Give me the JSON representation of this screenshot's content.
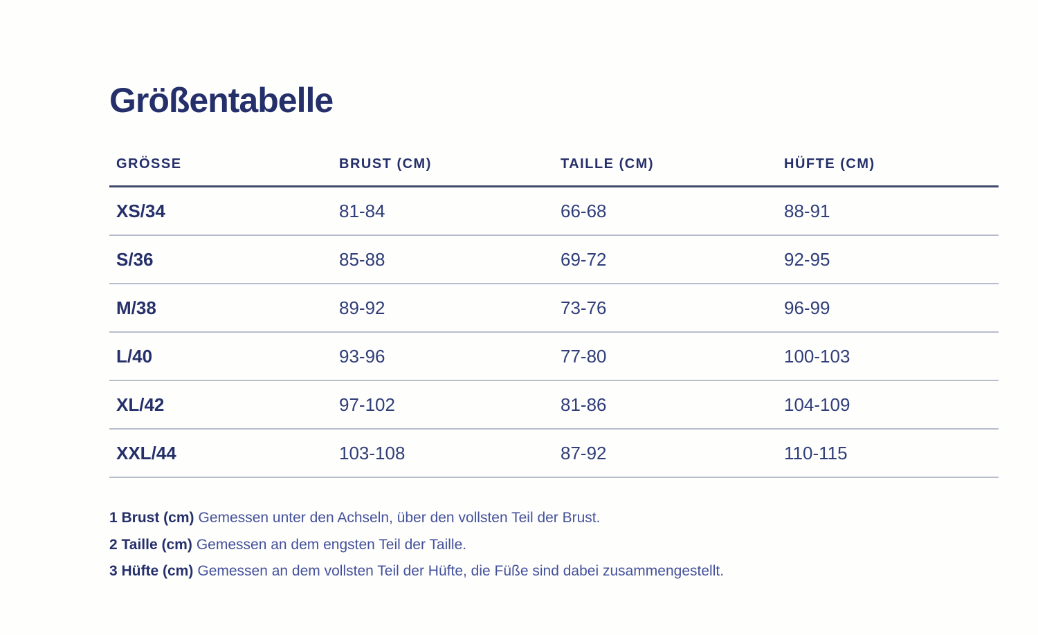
{
  "page": {
    "title": "Größentabelle"
  },
  "table": {
    "columns": [
      "GRÖSSE",
      "BRUST (CM)",
      "TAILLE (CM)",
      "HÜFTE (CM)"
    ],
    "rows": [
      {
        "groesse": "XS/34",
        "brust": "81-84",
        "taille": "66-68",
        "huefte": "88-91"
      },
      {
        "groesse": "S/36",
        "brust": "85-88",
        "taille": "69-72",
        "huefte": "92-95"
      },
      {
        "groesse": "M/38",
        "brust": "89-92",
        "taille": "73-76",
        "huefte": "96-99"
      },
      {
        "groesse": "L/40",
        "brust": "93-96",
        "taille": "77-80",
        "huefte": "100-103"
      },
      {
        "groesse": "XL/42",
        "brust": "97-102",
        "taille": "81-86",
        "huefte": "104-109"
      },
      {
        "groesse": "XXL/44",
        "brust": "103-108",
        "taille": "87-92",
        "huefte": "110-115"
      }
    ]
  },
  "footnotes": [
    {
      "label": "1 Brust (cm)",
      "text": "Gemessen unter den Achseln, über den vollsten Teil der Brust."
    },
    {
      "label": "2 Taille (cm)",
      "text": "Gemessen an dem engsten Teil der Taille."
    },
    {
      "label": "3 Hüfte (cm)",
      "text": "Gemessen an dem vollsten Teil der Hüfte, die Füße sind dabei zusammengestellt."
    }
  ],
  "colors": {
    "navy": "#25306B",
    "value_blue": "#2F3D79",
    "rule_dark": "#3E4A68",
    "rule_light": "#B7BDCB",
    "footnote_blue": "#44519A",
    "background": "#FEFEFD"
  }
}
